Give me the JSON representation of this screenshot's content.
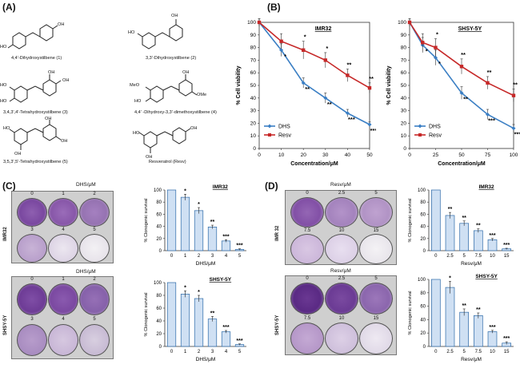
{
  "panels": {
    "A": "(A)",
    "B": "(B)",
    "C": "(C)",
    "D": "(D)"
  },
  "compounds": [
    "4,4'-Dihydroxystilbene (1)",
    "3,3'-Dihydroxystilbene (2)",
    "3,4,3',4'-Tetrahydroxystilbene (3)",
    "4,4' -Dihydroxy-3,3'-dimethoxystilbene (4)",
    "3,5,3',5'-Tetrahydroxystilbene (5)",
    "Resveratrol (Resv)"
  ],
  "substituents": {
    "oh": "OH",
    "ho": "HO",
    "meo": "MeO",
    "ome": "OMe"
  },
  "panelC": {
    "dish_title_top": "DHS/μM",
    "dish_title_bottom": "DHS/μM",
    "cell_top": "IMR32",
    "cell_bottom": "SHSY-5Y",
    "top_labels_row1": [
      "0",
      "1",
      "2"
    ],
    "top_labels_row2": [
      "3",
      "4",
      "5"
    ],
    "bottom_labels_row1": [
      "0",
      "1",
      "2"
    ],
    "bottom_labels_row2": [
      "3",
      "4",
      "5"
    ]
  },
  "panelD": {
    "dish_title_top": "Resv/μM",
    "dish_title_bottom": "Resv/μM",
    "cell_top": "IMR 32",
    "cell_bottom": "SHSY-5Y",
    "top_labels_row1": [
      "0",
      "2.5",
      "5"
    ],
    "top_labels_row2": [
      "7.5",
      "10",
      "15"
    ],
    "bottom_labels_row1": [
      "0",
      "2.5",
      "5"
    ],
    "bottom_labels_row2": [
      "7.5",
      "10",
      "15"
    ]
  },
  "chart_data": [
    {
      "id": "B_IMR32",
      "type": "line",
      "title": "IMR32",
      "xlabel": "Concentration/μM",
      "ylabel": "% Cell viability",
      "x": [
        0,
        10,
        20,
        30,
        40,
        50
      ],
      "xlim": [
        0,
        50
      ],
      "ylim": [
        0,
        100
      ],
      "xticks": [
        0,
        10,
        20,
        30,
        40,
        50
      ],
      "yticks": [
        0,
        10,
        20,
        30,
        40,
        50,
        60,
        70,
        80,
        90,
        100
      ],
      "legend": [
        "DHS",
        "Resv"
      ],
      "series": [
        {
          "name": "DHS",
          "color": "#3b7fc4",
          "values": [
            100,
            78,
            52,
            40,
            28,
            19
          ],
          "err": [
            3,
            5,
            4,
            4,
            3,
            2
          ],
          "sig": [
            "",
            "*",
            "**",
            "**",
            "***",
            "***"
          ]
        },
        {
          "name": "Resv",
          "color": "#c62828",
          "values": [
            100,
            85,
            78,
            70,
            58,
            48
          ],
          "err": [
            3,
            6,
            7,
            6,
            5,
            4
          ],
          "sig": [
            "",
            "",
            "*",
            "*",
            "**",
            "**"
          ]
        }
      ]
    },
    {
      "id": "B_SHSY5Y",
      "type": "line",
      "title": "SHSY-5Y",
      "xlabel": "Concentration/μM",
      "ylabel": "% Cell viability",
      "x": [
        0,
        12.5,
        25,
        50,
        75,
        100
      ],
      "xlim": [
        0,
        100
      ],
      "ylim": [
        0,
        100
      ],
      "xticks": [
        0,
        25,
        50,
        75,
        100
      ],
      "yticks": [
        0,
        10,
        20,
        30,
        40,
        50,
        60,
        70,
        80,
        90,
        100
      ],
      "legend": [
        "DHS",
        "Resv"
      ],
      "series": [
        {
          "name": "DHS",
          "color": "#3b7fc4",
          "values": [
            100,
            82,
            72,
            44,
            27,
            16
          ],
          "err": [
            3,
            6,
            6,
            5,
            4,
            3
          ],
          "sig": [
            "",
            "*",
            "*",
            "**",
            "***",
            "***"
          ]
        },
        {
          "name": "Resv",
          "color": "#c62828",
          "values": [
            100,
            84,
            80,
            65,
            52,
            42
          ],
          "err": [
            3,
            7,
            7,
            6,
            5,
            5
          ],
          "sig": [
            "",
            "",
            "*",
            "**",
            "**",
            "**"
          ]
        }
      ]
    },
    {
      "id": "C_IMR32",
      "type": "bar",
      "title": "IMR32",
      "xlabel": "DHS/μM",
      "ylabel": "% Clonogenic survival",
      "categories": [
        "0",
        "1",
        "2",
        "3",
        "4",
        "5"
      ],
      "values": [
        100,
        88,
        66,
        39,
        16,
        2
      ],
      "err": [
        0,
        5,
        5,
        3,
        2,
        1
      ],
      "sig": [
        "",
        "*",
        "*",
        "**",
        "***",
        "***"
      ],
      "ylim": [
        0,
        100
      ],
      "yticks": [
        0,
        20,
        40,
        60,
        80,
        100
      ]
    },
    {
      "id": "C_SHSY5Y",
      "type": "bar",
      "title": "SHSY-5Y",
      "xlabel": "DHS/μM",
      "ylabel": "% Clonogenic survival",
      "categories": [
        "0",
        "1",
        "2",
        "3",
        "4",
        "5"
      ],
      "values": [
        100,
        82,
        75,
        43,
        23,
        3
      ],
      "err": [
        0,
        5,
        5,
        4,
        2,
        1
      ],
      "sig": [
        "",
        "*",
        "*",
        "**",
        "***",
        "***"
      ],
      "ylim": [
        0,
        100
      ],
      "yticks": [
        0,
        20,
        40,
        60,
        80,
        100
      ]
    },
    {
      "id": "D_IMR32",
      "type": "bar",
      "title": "IMR32",
      "xlabel": "Resv/μM",
      "ylabel": "% Clonogenic survival",
      "categories": [
        "0",
        "2.5",
        "5",
        "7.5",
        "10",
        "15"
      ],
      "values": [
        100,
        58,
        45,
        33,
        18,
        3
      ],
      "err": [
        0,
        5,
        4,
        3,
        2,
        1
      ],
      "sig": [
        "",
        "**",
        "**",
        "**",
        "***",
        "***"
      ],
      "ylim": [
        0,
        100
      ],
      "yticks": [
        0,
        20,
        40,
        60,
        80,
        100
      ]
    },
    {
      "id": "D_SHSY5Y",
      "type": "bar",
      "title": "SHSY-5Y",
      "xlabel": "Resv/μM",
      "ylabel": "% Clonogenic survival",
      "categories": [
        "0",
        "2.5",
        "5",
        "7.5",
        "10",
        "15"
      ],
      "values": [
        100,
        88,
        51,
        46,
        22,
        5
      ],
      "err": [
        0,
        9,
        5,
        4,
        2,
        2
      ],
      "sig": [
        "",
        "*",
        "**",
        "**",
        "***",
        "***"
      ],
      "ylim": [
        0,
        100
      ],
      "yticks": [
        0,
        20,
        40,
        60,
        80,
        100
      ]
    }
  ]
}
